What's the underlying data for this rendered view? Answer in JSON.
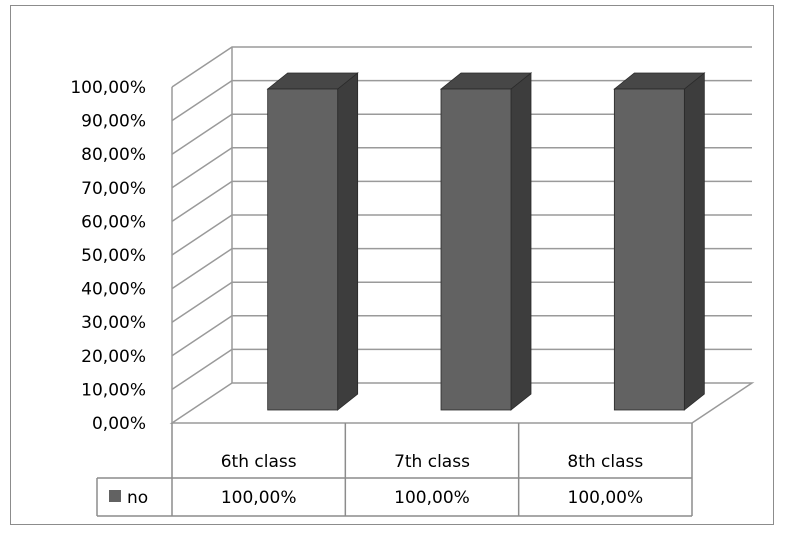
{
  "chart_data": {
    "type": "bar",
    "categories": [
      "6th class",
      "7th class",
      "8th class"
    ],
    "series": [
      {
        "name": "no",
        "values": [
          100.0,
          100.0,
          100.0
        ]
      }
    ],
    "value_labels": [
      "100,00%",
      "100,00%",
      "100,00%"
    ],
    "yticks": [
      "0,00%",
      "10,00%",
      "20,00%",
      "30,00%",
      "40,00%",
      "50,00%",
      "60,00%",
      "70,00%",
      "80,00%",
      "90,00%",
      "100,00%"
    ],
    "ylim": [
      0,
      100
    ],
    "grid": true,
    "style": "3d-column-with-data-table",
    "colors": {
      "bar_front": "#626262",
      "bar_side": "#3d3d3d",
      "bar_top": "#474747",
      "gridline": "#9a9a9a",
      "table_border": "#8c8c8c"
    },
    "legend_icon": "gray-square-icon"
  }
}
